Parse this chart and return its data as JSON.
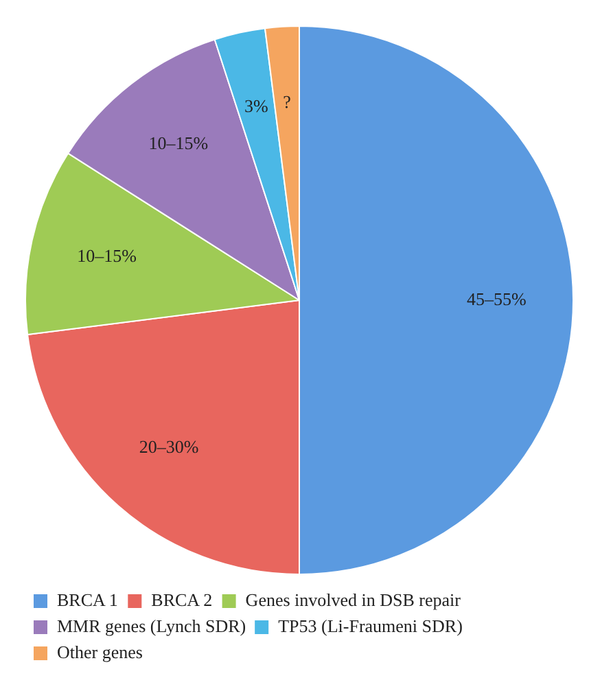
{
  "chart_data": {
    "type": "pie",
    "categories": [
      "BRCA 1",
      "BRCA 2",
      "Genes involved in DSB repair",
      "MMR genes (Lynch SDR)",
      "TP53 (Li-Fraumeni SDR)",
      "Other genes"
    ],
    "values": [
      50,
      23,
      11,
      11,
      3,
      2
    ],
    "colors": [
      "#5b9ae0",
      "#e8665e",
      "#9fcb55",
      "#9a7bbb",
      "#4bb8e6",
      "#f5a55f"
    ],
    "annotations": [
      "45–55%",
      "20–30%",
      "10–15%",
      "10–15%",
      "3%",
      "?"
    ],
    "legend": "bottom"
  }
}
